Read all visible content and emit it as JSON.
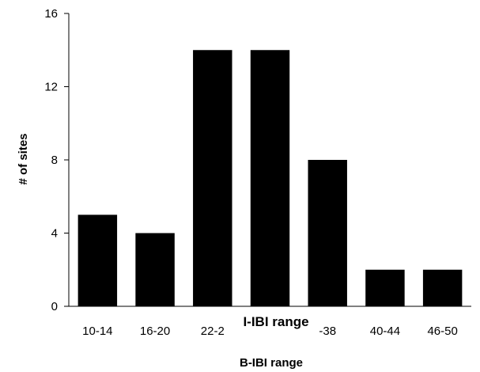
{
  "chart_data": {
    "type": "bar",
    "categories": [
      "10-14",
      "16-20",
      "22-2",
      "",
      "-38",
      "40-44",
      "46-50"
    ],
    "values": [
      5,
      4,
      14,
      14,
      8,
      2,
      2
    ],
    "xlabel": "B-IBI range",
    "ylabel": "# of sites",
    "overlay_label": "I-IBI range",
    "ylim": [
      0,
      16
    ],
    "yticks": [
      0,
      4,
      8,
      12,
      16
    ],
    "grid": false,
    "legend": "none",
    "bar_color": "#000000"
  }
}
